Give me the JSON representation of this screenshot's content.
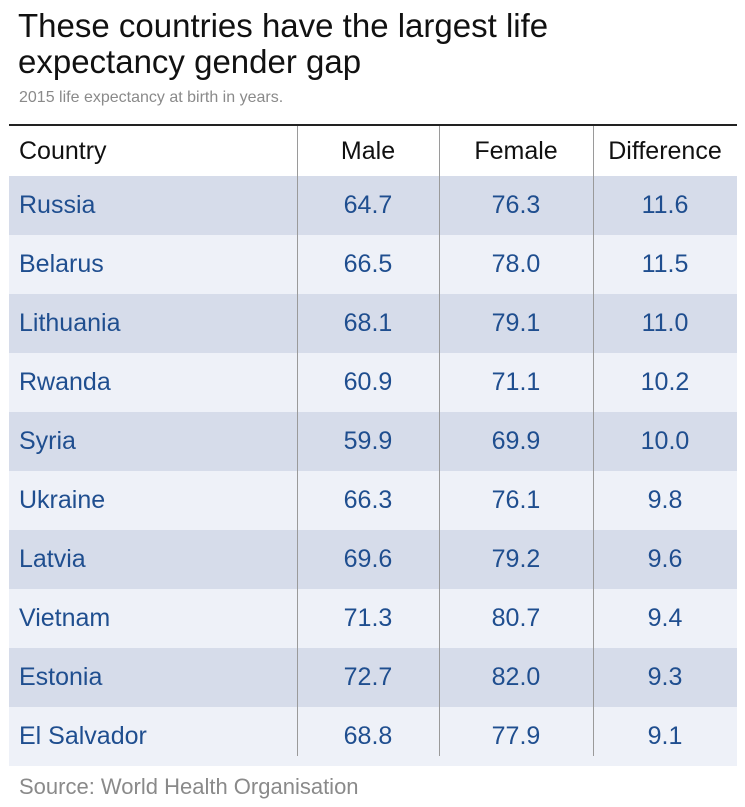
{
  "title": "These countries have the largest life expectancy gender gap",
  "subtitle": "2015 life expectancy at birth in years.",
  "source": "Source: World Health Organisation",
  "colors": {
    "row_dark": "#d6dcea",
    "row_light": "#eef1f8",
    "value_text": "#1f4e8f"
  },
  "chart_data": {
    "type": "table",
    "title": "These countries have the largest life expectancy gender gap",
    "subtitle": "2015 life expectancy at birth in years.",
    "columns": [
      "Country",
      "Male",
      "Female",
      "Difference"
    ],
    "rows": [
      [
        "Russia",
        "64.7",
        "76.3",
        "11.6"
      ],
      [
        "Belarus",
        "66.5",
        "78.0",
        "11.5"
      ],
      [
        "Lithuania",
        "68.1",
        "79.1",
        "11.0"
      ],
      [
        "Rwanda",
        "60.9",
        "71.1",
        "10.2"
      ],
      [
        "Syria",
        "59.9",
        "69.9",
        "10.0"
      ],
      [
        "Ukraine",
        "66.3",
        "76.1",
        "9.8"
      ],
      [
        "Latvia",
        "69.6",
        "79.2",
        "9.6"
      ],
      [
        "Vietnam",
        "71.3",
        "80.7",
        "9.4"
      ],
      [
        "Estonia",
        "72.7",
        "82.0",
        "9.3"
      ],
      [
        "El Salvador",
        "68.8",
        "77.9",
        "9.1"
      ]
    ]
  }
}
